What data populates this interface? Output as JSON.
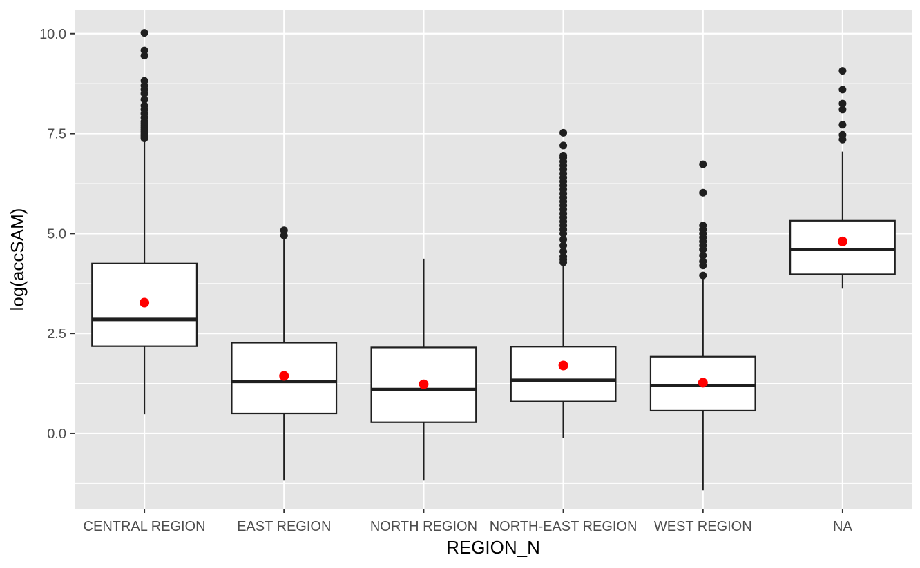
{
  "chart_data": {
    "type": "boxplot",
    "xlabel": "REGION_N",
    "ylabel": "log(accSAM)",
    "ylim": [
      -1.9,
      10.6
    ],
    "y_ticks": [
      0.0,
      2.5,
      5.0,
      7.5,
      10.0
    ],
    "y_tick_labels": [
      "0.0",
      "2.5",
      "5.0",
      "7.5",
      "10.0"
    ],
    "grid": true,
    "panel_background": "#e5e5e5",
    "mean_marker_color": "#ff0000",
    "categories": [
      "CENTRAL REGION",
      "EAST REGION",
      "NORTH REGION",
      "NORTH-EAST REGION",
      "WEST REGION",
      "NA"
    ],
    "boxes": [
      {
        "q1": 2.18,
        "median": 2.85,
        "q3": 4.25,
        "whisker_low": 0.48,
        "whisker_high": 7.35,
        "mean": 3.27,
        "outliers": [
          7.38,
          7.42,
          7.46,
          7.5,
          7.55,
          7.6,
          7.65,
          7.7,
          7.75,
          7.8,
          7.9,
          8.0,
          8.1,
          8.2,
          8.35,
          8.5,
          8.6,
          8.7,
          8.82,
          9.45,
          9.58,
          10.02
        ]
      },
      {
        "q1": 0.5,
        "median": 1.3,
        "q3": 2.27,
        "whisker_low": -1.18,
        "whisker_high": 4.85,
        "mean": 1.44,
        "outliers": [
          4.95,
          5.08
        ]
      },
      {
        "q1": 0.28,
        "median": 1.1,
        "q3": 2.15,
        "whisker_low": -1.18,
        "whisker_high": 4.37,
        "mean": 1.23,
        "outliers": []
      },
      {
        "q1": 0.8,
        "median": 1.33,
        "q3": 2.17,
        "whisker_low": -0.12,
        "whisker_high": 4.22,
        "mean": 1.7,
        "outliers": [
          4.28,
          4.35,
          4.42,
          4.55,
          4.7,
          4.85,
          5.0,
          5.1,
          5.2,
          5.3,
          5.4,
          5.5,
          5.6,
          5.7,
          5.8,
          5.9,
          6.0,
          6.1,
          6.2,
          6.3,
          6.4,
          6.5,
          6.6,
          6.7,
          6.8,
          6.9,
          6.95,
          7.2,
          7.52
        ]
      },
      {
        "q1": 0.57,
        "median": 1.2,
        "q3": 1.92,
        "whisker_low": -1.42,
        "whisker_high": 3.9,
        "mean": 1.27,
        "outliers": [
          3.95,
          4.2,
          4.3,
          4.45,
          4.6,
          4.7,
          4.8,
          4.9,
          5.0,
          5.1,
          5.2,
          6.02,
          6.73
        ]
      },
      {
        "q1": 3.98,
        "median": 4.6,
        "q3": 5.32,
        "whisker_low": 3.62,
        "whisker_high": 7.05,
        "mean": 4.8,
        "outliers": [
          7.35,
          7.47,
          7.72,
          8.1,
          8.25,
          8.6,
          9.07
        ]
      }
    ]
  }
}
